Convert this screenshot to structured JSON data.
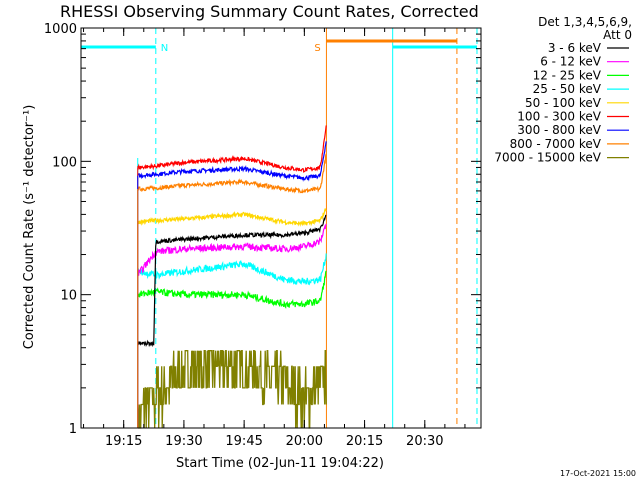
{
  "chart_data": {
    "type": "line",
    "title": "RHESSI Observing Summary Count Rates, Corrected",
    "xlabel": "Start Time (02-Jun-11 19:04:22)",
    "ylabel": "Corrected Count Rate (s⁻¹ detector⁻¹)",
    "yscale": "log",
    "ylim": [
      1,
      1000
    ],
    "xlim": [
      "19:04:22",
      "20:44:00"
    ],
    "x_ticks": [
      "19:15",
      "19:30",
      "19:45",
      "20:00",
      "20:15",
      "20:30"
    ],
    "y_ticks": [
      "1",
      "10",
      "100",
      "1000"
    ],
    "legend_title": "Det 1,3,4,5,6,9,",
    "legend_subtitle": "Att 0",
    "legend_position": "right",
    "timestamp": "17-Oct-2021 15:00",
    "markers": [
      {
        "label": "N",
        "color": "#00ffff",
        "bar_start": "19:04:22",
        "bar_end": "19:23:00"
      },
      {
        "label": "S",
        "color": "#ff8000",
        "bar_start": "20:05:30",
        "bar_end": "20:38:00"
      }
    ],
    "night_intervals": [
      {
        "start": "19:04:22",
        "end": "19:23:00",
        "color": "#00ffff"
      },
      {
        "start": "20:22:00",
        "end": "20:43:00",
        "color": "#00ffff"
      }
    ],
    "saa_intervals": [
      {
        "start": "20:05:30",
        "end": "20:38:00",
        "color": "#ff8000"
      }
    ],
    "data_start": "19:18:30",
    "data_end": "20:05:30",
    "series": [
      {
        "name": "3 - 6 keV",
        "color": "#000000",
        "x": [
          "19:18:30",
          "19:22:30",
          "19:23:00",
          "19:30",
          "19:45",
          "19:55",
          "20:00",
          "20:04",
          "20:05:30"
        ],
        "values": [
          4.3,
          4.3,
          25,
          26,
          28,
          28,
          29,
          31,
          40
        ]
      },
      {
        "name": "6 - 12 keV",
        "color": "#ff00ff",
        "x": [
          "19:18:30",
          "19:23:00",
          "19:30",
          "19:45",
          "19:55",
          "20:00",
          "20:04",
          "20:05:30"
        ],
        "values": [
          14,
          21,
          22,
          23,
          22,
          23,
          25,
          35
        ]
      },
      {
        "name": "12 - 25 keV",
        "color": "#00ff00",
        "x": [
          "19:18:30",
          "19:23:00",
          "19:30",
          "19:45",
          "19:55",
          "20:00",
          "20:04",
          "20:05:30"
        ],
        "values": [
          10,
          10.5,
          10,
          10,
          8.5,
          8.5,
          9,
          15
        ]
      },
      {
        "name": "25 - 50 keV",
        "color": "#00ffff",
        "x": [
          "19:18:30",
          "19:23:00",
          "19:30",
          "19:45",
          "19:55",
          "20:00",
          "20:04",
          "20:05:30"
        ],
        "values": [
          15,
          14,
          15,
          17,
          13,
          12.5,
          13,
          20
        ]
      },
      {
        "name": "50 - 100 keV",
        "color": "#ffd700",
        "x": [
          "19:18:30",
          "19:23:00",
          "19:30",
          "19:45",
          "19:55",
          "20:00",
          "20:04",
          "20:05:30"
        ],
        "values": [
          35,
          36,
          37,
          40,
          35,
          34,
          36,
          45
        ]
      },
      {
        "name": "100 - 300 keV",
        "color": "#ff0000",
        "x": [
          "19:18:30",
          "19:23:00",
          "19:30",
          "19:45",
          "19:55",
          "20:00",
          "20:04",
          "20:05:30"
        ],
        "values": [
          90,
          92,
          98,
          105,
          90,
          86,
          90,
          190
        ]
      },
      {
        "name": "300 - 800 keV",
        "color": "#0000ff",
        "x": [
          "19:18:30",
          "19:23:00",
          "19:30",
          "19:45",
          "19:55",
          "20:00",
          "20:04",
          "20:05:30"
        ],
        "values": [
          78,
          80,
          84,
          88,
          78,
          75,
          78,
          145
        ]
      },
      {
        "name": "800 - 7000 keV",
        "color": "#ff8000",
        "x": [
          "19:18:30",
          "19:23:00",
          "19:30",
          "19:45",
          "19:55",
          "20:00",
          "20:04",
          "20:05:30"
        ],
        "values": [
          62,
          63,
          66,
          70,
          62,
          60,
          62,
          115
        ]
      },
      {
        "name": "7000 - 15000 keV",
        "color": "#808000",
        "x": [
          "19:18:30",
          "19:20",
          "19:25",
          "19:30",
          "19:35",
          "19:45",
          "19:55",
          "20:00",
          "20:05:30"
        ],
        "values": [
          1,
          1.5,
          1.9,
          2.8,
          3.0,
          2.9,
          2.2,
          1.6,
          2.5
        ]
      }
    ]
  }
}
